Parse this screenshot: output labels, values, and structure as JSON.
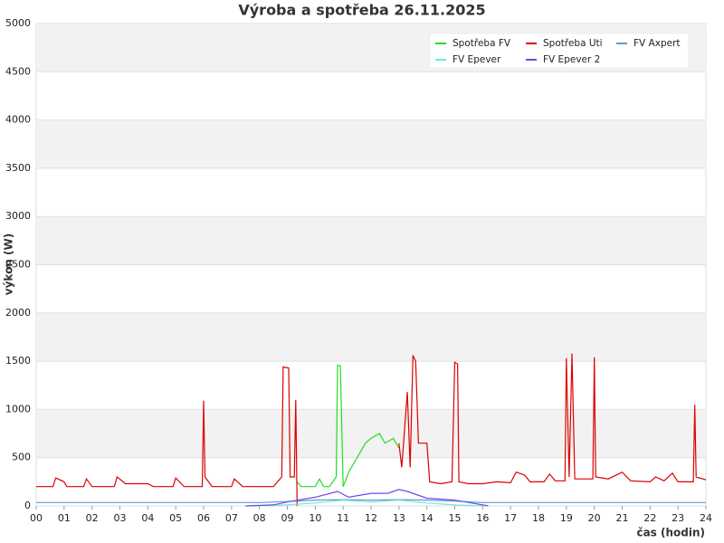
{
  "chart_data": {
    "type": "line",
    "title": "Výroba a spotřeba 26.11.2025",
    "x_label": "čas (hodin)",
    "y_label": "výkon (W)",
    "xlim": [
      0,
      24
    ],
    "xticks": [
      {
        "value": 0,
        "label": "00"
      },
      {
        "value": 1,
        "label": "01"
      },
      {
        "value": 2,
        "label": "02"
      },
      {
        "value": 3,
        "label": "03"
      },
      {
        "value": 4,
        "label": "04"
      },
      {
        "value": 5,
        "label": "05"
      },
      {
        "value": 6,
        "label": "06"
      },
      {
        "value": 7,
        "label": "07"
      },
      {
        "value": 8,
        "label": "08"
      },
      {
        "value": 9,
        "label": "09"
      },
      10,
      11,
      12,
      13,
      14,
      15,
      16,
      17,
      18,
      19,
      20,
      21,
      22,
      23,
      24
    ],
    "ylim": [
      0,
      5000
    ],
    "yticks": [
      0,
      500,
      1000,
      1500,
      2000,
      2500,
      3000,
      3500,
      4000,
      4500,
      5000
    ],
    "grid": true,
    "legend": "upper right",
    "series": [
      {
        "name": "Spotřeba FV",
        "color": "#22dd22",
        "x": [
          9.35,
          9.5,
          10.0,
          10.15,
          10.3,
          10.5,
          10.75,
          10.8,
          10.9,
          11.0,
          11.2,
          11.5,
          11.8,
          12.0,
          12.3,
          12.5,
          12.8,
          13.0
        ],
        "values": [
          250,
          200,
          200,
          280,
          200,
          200,
          300,
          1460,
          1450,
          200,
          350,
          500,
          650,
          700,
          750,
          650,
          700,
          600
        ]
      },
      {
        "name": "Spotřeba Uti",
        "color": "#dd0000",
        "x": [
          0,
          0.6,
          0.7,
          1.0,
          1.1,
          1.7,
          1.8,
          2.0,
          2.8,
          2.9,
          3.2,
          4.0,
          4.2,
          4.9,
          5.0,
          5.3,
          5.95,
          6.0,
          6.05,
          6.3,
          7.0,
          7.1,
          7.4,
          8.5,
          8.8,
          8.85,
          9.05,
          9.1,
          9.25,
          9.3,
          9.35,
          9.4,
          13.0,
          13.1,
          13.3,
          13.4,
          13.5,
          13.6,
          13.7,
          14.0,
          14.1,
          14.5,
          14.9,
          15.0,
          15.1,
          15.15,
          15.5,
          16.0,
          16.5,
          17.0,
          17.2,
          17.5,
          17.7,
          18.2,
          18.4,
          18.6,
          18.95,
          19.0,
          19.1,
          19.2,
          19.3,
          19.95,
          20.0,
          20.05,
          20.5,
          21.0,
          21.3,
          22.0,
          22.2,
          22.5,
          22.8,
          23.0,
          23.55,
          23.6,
          23.65,
          24.0
        ],
        "values": [
          200,
          200,
          290,
          250,
          200,
          200,
          280,
          200,
          200,
          300,
          230,
          230,
          200,
          200,
          290,
          200,
          200,
          1090,
          300,
          200,
          200,
          280,
          200,
          200,
          300,
          1440,
          1430,
          300,
          300,
          1100,
          0,
          null,
          650,
          400,
          1180,
          400,
          1560,
          1500,
          650,
          650,
          250,
          230,
          250,
          1490,
          1470,
          250,
          230,
          230,
          250,
          240,
          350,
          320,
          250,
          250,
          330,
          260,
          260,
          1530,
          300,
          1580,
          280,
          280,
          1540,
          300,
          280,
          350,
          260,
          250,
          300,
          260,
          340,
          250,
          250,
          1050,
          300,
          270
        ]
      },
      {
        "name": "FV Axpert",
        "color": "#6699cc",
        "x": [
          0,
          4,
          8,
          9,
          10,
          11,
          12,
          13,
          14,
          15,
          16,
          18,
          20,
          22,
          24
        ],
        "values": [
          35,
          35,
          35,
          45,
          60,
          65,
          60,
          65,
          60,
          50,
          35,
          35,
          35,
          35,
          35
        ]
      },
      {
        "name": "FV Epever",
        "color": "#66eedd",
        "x": [
          7.5,
          8,
          9,
          10,
          11,
          12,
          13,
          14,
          15,
          16
        ],
        "values": [
          0,
          0,
          10,
          30,
          60,
          40,
          60,
          30,
          10,
          0
        ]
      },
      {
        "name": "FV Epever 2",
        "color": "#7744ee",
        "x": [
          7.5,
          8.5,
          9,
          10,
          10.8,
          11.2,
          12,
          12.6,
          13.0,
          13.3,
          14,
          15,
          16,
          16.2
        ],
        "values": [
          0,
          10,
          40,
          90,
          150,
          90,
          130,
          130,
          170,
          150,
          80,
          60,
          10,
          0
        ]
      }
    ]
  }
}
